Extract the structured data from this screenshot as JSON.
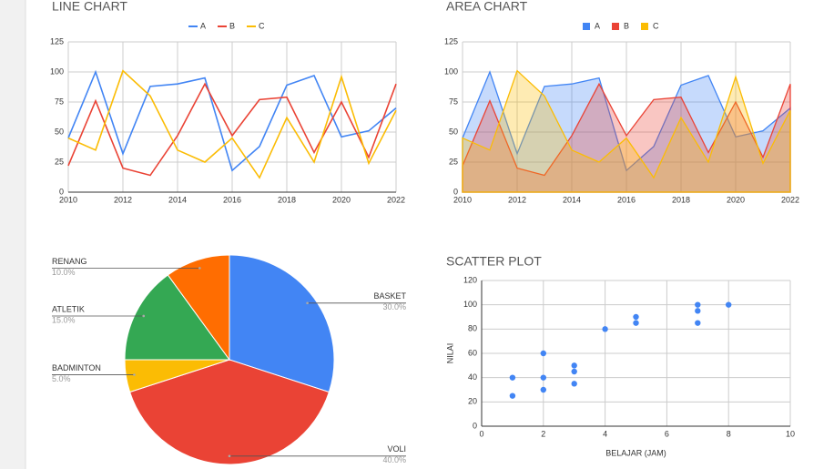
{
  "chart_data": [
    {
      "type": "line",
      "title": "LINE CHART",
      "x": [
        2010,
        2011,
        2012,
        2013,
        2014,
        2015,
        2016,
        2017,
        2018,
        2019,
        2020,
        2021,
        2022
      ],
      "series": [
        {
          "name": "A",
          "color": "#4285f4",
          "values": [
            45,
            100,
            32,
            88,
            90,
            95,
            18,
            38,
            89,
            97,
            46,
            51,
            70
          ]
        },
        {
          "name": "B",
          "color": "#ea4335",
          "values": [
            22,
            76,
            20,
            14,
            47,
            90,
            47,
            77,
            79,
            33,
            75,
            29,
            90
          ]
        },
        {
          "name": "C",
          "color": "#fbbc04",
          "values": [
            45,
            35,
            101,
            80,
            35,
            25,
            45,
            12,
            62,
            25,
            96,
            24,
            68
          ]
        }
      ],
      "xlim": [
        2010,
        2022
      ],
      "xticks": [
        2010,
        2012,
        2014,
        2016,
        2018,
        2020,
        2022
      ],
      "ylim": [
        0,
        125
      ],
      "yticks": [
        0,
        25,
        50,
        75,
        100,
        125
      ],
      "grid": true,
      "legend": "top"
    },
    {
      "type": "area",
      "title": "AREA CHART",
      "x": [
        2010,
        2011,
        2012,
        2013,
        2014,
        2015,
        2016,
        2017,
        2018,
        2019,
        2020,
        2021,
        2022
      ],
      "series": [
        {
          "name": "A",
          "color": "#4285f4",
          "values": [
            45,
            100,
            32,
            88,
            90,
            95,
            18,
            38,
            89,
            97,
            46,
            51,
            70
          ]
        },
        {
          "name": "B",
          "color": "#ea4335",
          "values": [
            22,
            76,
            20,
            14,
            47,
            90,
            47,
            77,
            79,
            33,
            75,
            29,
            90
          ]
        },
        {
          "name": "C",
          "color": "#fbbc04",
          "values": [
            45,
            35,
            101,
            80,
            35,
            25,
            45,
            12,
            62,
            25,
            96,
            24,
            68
          ]
        }
      ],
      "xlim": [
        2010,
        2022
      ],
      "xticks": [
        2010,
        2012,
        2014,
        2016,
        2018,
        2020,
        2022
      ],
      "ylim": [
        0,
        125
      ],
      "yticks": [
        0,
        25,
        50,
        75,
        100,
        125
      ],
      "grid": true,
      "legend": "top"
    },
    {
      "type": "pie",
      "categories": [
        "BASKET",
        "VOLI",
        "BADMINTON",
        "ATLETIK",
        "RENANG"
      ],
      "values": [
        30,
        40,
        5,
        15,
        10
      ],
      "value_labels": [
        "30.0%",
        "40.0%",
        "5.0%",
        "15.0%",
        "10.0%"
      ],
      "colors": [
        "#4285f4",
        "#ea4335",
        "#fbbc04",
        "#34a853",
        "#ff6d01"
      ]
    },
    {
      "type": "scatter",
      "title": "SCATTER PLOT",
      "xlabel": "BELAJAR (JAM)",
      "ylabel": "NILAI",
      "color": "#4285f4",
      "x": [
        1,
        1,
        2,
        2,
        2,
        3,
        3,
        3,
        4,
        5,
        5,
        7,
        7,
        7,
        8
      ],
      "values": [
        40,
        25,
        60,
        40,
        30,
        50,
        45,
        35,
        80,
        90,
        85,
        100,
        95,
        85,
        100
      ],
      "xlim": [
        0,
        10
      ],
      "xticks": [
        0,
        2,
        4,
        6,
        8,
        10
      ],
      "ylim": [
        0,
        120
      ],
      "yticks": [
        0,
        20,
        40,
        60,
        80,
        100,
        120
      ],
      "grid": true
    }
  ]
}
